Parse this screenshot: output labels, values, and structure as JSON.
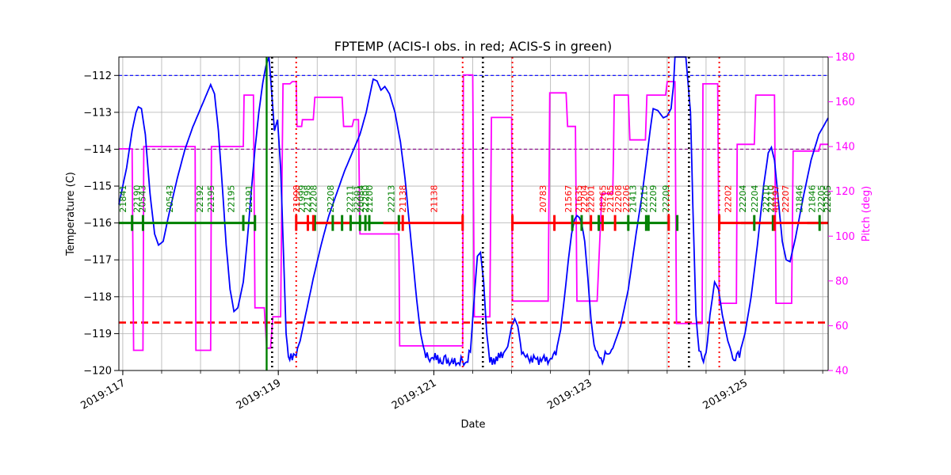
{
  "chart_data": {
    "type": "line",
    "title": "FPTEMP (ACIS-I obs. in red; ACIS-S in green)",
    "xlabel": "Date",
    "ylabel": "Temperature (C)",
    "y2label": "Pitch (deg)",
    "xlim": [
      116.95,
      126.07
    ],
    "ylim": [
      -120,
      -111.5
    ],
    "y2lim": [
      40,
      180
    ],
    "x_ticks": [
      117,
      119,
      121,
      123,
      125
    ],
    "x_tick_labels": [
      "2019:117",
      "2019:119",
      "2019:121",
      "2019:123",
      "2019:125"
    ],
    "y_ticks": [
      -120,
      -119,
      -118,
      -117,
      -116,
      -115,
      -114,
      -113,
      -112
    ],
    "y2_ticks": [
      40,
      60,
      80,
      100,
      120,
      140,
      160,
      180
    ],
    "grid": true,
    "colors": {
      "temperature": "#0000ff",
      "pitch": "#ff00ff",
      "acis_i": "#ff0000",
      "acis_s": "#008000",
      "limit_blue": "#0000ff",
      "limit_purple": "#800080",
      "limit_red": "#ff0000"
    },
    "reference_lines": [
      {
        "y": -112.0,
        "color": "#0000ff",
        "style": "dashed"
      },
      {
        "y": -114.0,
        "color": "#800080",
        "style": "dashed"
      },
      {
        "y": -118.7,
        "color": "#ff0000",
        "style": "dashed-thick"
      }
    ],
    "vertical_markers": [
      {
        "x": 118.92,
        "color": "#000000",
        "style": "dotted"
      },
      {
        "x": 121.63,
        "color": "#000000",
        "style": "dotted"
      },
      {
        "x": 124.28,
        "color": "#000000",
        "style": "dotted"
      },
      {
        "x": 119.23,
        "color": "#ff0000",
        "style": "dotted"
      },
      {
        "x": 121.37,
        "color": "#ff0000",
        "style": "dotted"
      },
      {
        "x": 122.01,
        "color": "#ff0000",
        "style": "dotted"
      },
      {
        "x": 124.02,
        "color": "#ff0000",
        "style": "dotted"
      },
      {
        "x": 124.67,
        "color": "#ff0000",
        "style": "dotted"
      },
      {
        "x": 118.85,
        "color": "#008000",
        "style": "solid"
      }
    ],
    "temperature_series": {
      "name": "FPTEMP",
      "points": [
        [
          116.95,
          -115.5
        ],
        [
          117.05,
          -114.5
        ],
        [
          117.12,
          -113.5
        ],
        [
          117.17,
          -113.0
        ],
        [
          117.2,
          -112.85
        ],
        [
          117.24,
          -112.9
        ],
        [
          117.29,
          -113.6
        ],
        [
          117.35,
          -115.2
        ],
        [
          117.41,
          -116.3
        ],
        [
          117.46,
          -116.6
        ],
        [
          117.52,
          -116.5
        ],
        [
          117.6,
          -115.7
        ],
        [
          117.7,
          -114.8
        ],
        [
          117.8,
          -114.0
        ],
        [
          117.9,
          -113.4
        ],
        [
          118.0,
          -112.9
        ],
        [
          118.08,
          -112.5
        ],
        [
          118.13,
          -112.25
        ],
        [
          118.18,
          -112.5
        ],
        [
          118.23,
          -113.5
        ],
        [
          118.28,
          -115.0
        ],
        [
          118.33,
          -116.6
        ],
        [
          118.38,
          -117.8
        ],
        [
          118.43,
          -118.4
        ],
        [
          118.48,
          -118.3
        ],
        [
          118.55,
          -117.6
        ],
        [
          118.6,
          -116.5
        ],
        [
          118.65,
          -115.2
        ],
        [
          118.7,
          -114.0
        ],
        [
          118.75,
          -113.0
        ],
        [
          118.8,
          -112.2
        ],
        [
          118.84,
          -111.75
        ],
        [
          118.88,
          -111.5
        ],
        [
          118.92,
          -112.6
        ],
        [
          118.95,
          -113.5
        ],
        [
          118.99,
          -113.2
        ],
        [
          119.03,
          -114.5
        ],
        [
          119.07,
          -117.0
        ],
        [
          119.1,
          -119.0
        ],
        [
          119.13,
          -119.6
        ],
        [
          119.18,
          -119.7
        ],
        [
          119.23,
          -119.5
        ],
        [
          119.28,
          -119.2
        ],
        [
          119.35,
          -118.5
        ],
        [
          119.45,
          -117.5
        ],
        [
          119.55,
          -116.6
        ],
        [
          119.65,
          -115.8
        ],
        [
          119.75,
          -115.2
        ],
        [
          119.85,
          -114.6
        ],
        [
          119.95,
          -114.1
        ],
        [
          120.05,
          -113.6
        ],
        [
          120.13,
          -113.0
        ],
        [
          120.18,
          -112.5
        ],
        [
          120.22,
          -112.1
        ],
        [
          120.27,
          -112.15
        ],
        [
          120.32,
          -112.4
        ],
        [
          120.37,
          -112.3
        ],
        [
          120.43,
          -112.5
        ],
        [
          120.5,
          -113.0
        ],
        [
          120.57,
          -113.8
        ],
        [
          120.63,
          -114.8
        ],
        [
          120.68,
          -115.9
        ],
        [
          120.73,
          -117.0
        ],
        [
          120.78,
          -118.1
        ],
        [
          120.83,
          -119.0
        ],
        [
          120.88,
          -119.5
        ],
        [
          120.93,
          -119.7
        ],
        [
          121.0,
          -119.65
        ],
        [
          121.08,
          -119.75
        ],
        [
          121.15,
          -119.7
        ],
        [
          121.25,
          -119.8
        ],
        [
          121.35,
          -119.75
        ],
        [
          121.42,
          -119.8
        ],
        [
          121.47,
          -119.5
        ],
        [
          121.52,
          -118.0
        ],
        [
          121.56,
          -116.9
        ],
        [
          121.6,
          -116.8
        ],
        [
          121.64,
          -117.6
        ],
        [
          121.68,
          -119.0
        ],
        [
          121.72,
          -119.7
        ],
        [
          121.8,
          -119.7
        ],
        [
          121.88,
          -119.6
        ],
        [
          121.95,
          -119.35
        ],
        [
          122.0,
          -118.8
        ],
        [
          122.04,
          -118.6
        ],
        [
          122.08,
          -118.8
        ],
        [
          122.13,
          -119.5
        ],
        [
          122.2,
          -119.65
        ],
        [
          122.3,
          -119.7
        ],
        [
          122.4,
          -119.7
        ],
        [
          122.5,
          -119.7
        ],
        [
          122.57,
          -119.5
        ],
        [
          122.63,
          -118.9
        ],
        [
          122.68,
          -118.0
        ],
        [
          122.73,
          -117.0
        ],
        [
          122.77,
          -116.3
        ],
        [
          122.81,
          -115.9
        ],
        [
          122.84,
          -115.8
        ],
        [
          122.87,
          -115.85
        ],
        [
          122.9,
          -116.0
        ],
        [
          122.94,
          -116.5
        ],
        [
          122.98,
          -117.5
        ],
        [
          123.02,
          -118.6
        ],
        [
          123.06,
          -119.3
        ],
        [
          123.1,
          -119.6
        ],
        [
          123.15,
          -119.7
        ],
        [
          123.22,
          -119.6
        ],
        [
          123.3,
          -119.4
        ],
        [
          123.4,
          -118.8
        ],
        [
          123.5,
          -117.8
        ],
        [
          123.6,
          -116.3
        ],
        [
          123.68,
          -115.2
        ],
        [
          123.74,
          -114.2
        ],
        [
          123.78,
          -113.5
        ],
        [
          123.82,
          -112.9
        ],
        [
          123.88,
          -112.95
        ],
        [
          123.95,
          -113.15
        ],
        [
          124.0,
          -113.1
        ],
        [
          124.05,
          -112.9
        ],
        [
          124.08,
          -112.3
        ],
        [
          124.1,
          -111.5
        ],
        [
          124.2,
          -111.5
        ],
        [
          124.24,
          -111.5
        ],
        [
          124.3,
          -113.0
        ],
        [
          124.33,
          -115.5
        ],
        [
          124.37,
          -118.5
        ],
        [
          124.41,
          -119.5
        ],
        [
          124.45,
          -119.7
        ],
        [
          124.5,
          -119.6
        ],
        [
          124.55,
          -118.5
        ],
        [
          124.61,
          -117.6
        ],
        [
          124.66,
          -117.8
        ],
        [
          124.71,
          -118.5
        ],
        [
          124.78,
          -119.2
        ],
        [
          124.86,
          -119.7
        ],
        [
          124.93,
          -119.55
        ],
        [
          125.0,
          -119.0
        ],
        [
          125.08,
          -118.0
        ],
        [
          125.16,
          -116.6
        ],
        [
          125.24,
          -115.0
        ],
        [
          125.3,
          -114.1
        ],
        [
          125.34,
          -113.95
        ],
        [
          125.38,
          -114.3
        ],
        [
          125.43,
          -115.4
        ],
        [
          125.48,
          -116.5
        ],
        [
          125.53,
          -117.0
        ],
        [
          125.58,
          -117.05
        ],
        [
          125.65,
          -116.4
        ],
        [
          125.75,
          -115.3
        ],
        [
          125.85,
          -114.3
        ],
        [
          125.95,
          -113.6
        ],
        [
          126.07,
          -113.15
        ]
      ]
    },
    "pitch_series": {
      "name": "Pitch",
      "points": [
        [
          116.95,
          139
        ],
        [
          117.1,
          139
        ],
        [
          117.12,
          139
        ],
        [
          117.14,
          49
        ],
        [
          117.26,
          49
        ],
        [
          117.27,
          140
        ],
        [
          117.93,
          140
        ],
        [
          117.94,
          49
        ],
        [
          118.13,
          49
        ],
        [
          118.14,
          140
        ],
        [
          118.55,
          140
        ],
        [
          118.56,
          163
        ],
        [
          118.68,
          163
        ],
        [
          118.7,
          68
        ],
        [
          118.82,
          68
        ],
        [
          118.85,
          50
        ],
        [
          118.9,
          50
        ],
        [
          118.93,
          64
        ],
        [
          119.03,
          64
        ],
        [
          119.06,
          168
        ],
        [
          119.15,
          168
        ],
        [
          119.18,
          169
        ],
        [
          119.23,
          169
        ],
        [
          119.24,
          149
        ],
        [
          119.3,
          149
        ],
        [
          119.31,
          152
        ],
        [
          119.45,
          152
        ],
        [
          119.47,
          162
        ],
        [
          119.82,
          162
        ],
        [
          119.84,
          149
        ],
        [
          119.95,
          149
        ],
        [
          119.97,
          152
        ],
        [
          120.03,
          152
        ],
        [
          120.05,
          101
        ],
        [
          120.55,
          101
        ],
        [
          120.56,
          51
        ],
        [
          121.37,
          51
        ],
        [
          121.38,
          172
        ],
        [
          121.5,
          172
        ],
        [
          121.52,
          64
        ],
        [
          121.72,
          64
        ],
        [
          121.74,
          153
        ],
        [
          121.88,
          153
        ],
        [
          121.9,
          153
        ],
        [
          122.0,
          153
        ],
        [
          122.01,
          71
        ],
        [
          122.47,
          71
        ],
        [
          122.49,
          164
        ],
        [
          122.7,
          164
        ],
        [
          122.72,
          149
        ],
        [
          122.82,
          149
        ],
        [
          122.84,
          71
        ],
        [
          123.1,
          71
        ],
        [
          123.16,
          119
        ],
        [
          123.3,
          119
        ],
        [
          123.31,
          136
        ],
        [
          123.32,
          163
        ],
        [
          123.5,
          163
        ],
        [
          123.52,
          143
        ],
        [
          123.72,
          143
        ],
        [
          123.74,
          163
        ],
        [
          123.98,
          163
        ],
        [
          124.0,
          169
        ],
        [
          124.1,
          169
        ],
        [
          124.12,
          61
        ],
        [
          124.45,
          61
        ],
        [
          124.46,
          168
        ],
        [
          124.65,
          168
        ],
        [
          124.67,
          70
        ],
        [
          124.89,
          70
        ],
        [
          124.9,
          141
        ],
        [
          125.12,
          141
        ],
        [
          125.14,
          163
        ],
        [
          125.38,
          163
        ],
        [
          125.4,
          70
        ],
        [
          125.6,
          70
        ],
        [
          125.62,
          138
        ],
        [
          125.95,
          138
        ],
        [
          125.97,
          141
        ],
        [
          126.07,
          141
        ]
      ]
    },
    "acis_i_segments": [
      [
        119.23,
        119.93
      ],
      [
        120.35,
        121.37
      ],
      [
        122.01,
        122.6
      ],
      [
        122.6,
        123.02
      ],
      [
        124.67,
        125.4
      ],
      [
        125.4,
        126.07
      ]
    ],
    "acis_s_segments": [
      [
        116.95,
        118.7
      ],
      [
        119.37,
        120.55
      ],
      [
        122.8,
        124.02
      ],
      [
        124.95,
        125.4
      ],
      [
        125.8,
        126.07
      ]
    ],
    "acis_i_ticks": [
      119.23,
      119.38,
      119.45,
      120.6,
      121.37,
      122.01,
      122.55,
      123.02,
      123.17,
      123.33,
      124.02,
      124.67,
      125.38
    ],
    "acis_s_ticks": [
      117.12,
      117.26,
      118.55,
      118.7,
      119.47,
      119.7,
      119.82,
      119.93,
      120.05,
      120.12,
      120.17,
      120.55,
      122.78,
      122.9,
      123.12,
      123.5,
      123.73,
      123.76,
      124.13,
      125.12,
      125.36,
      125.96
    ],
    "acis_i_labels": [
      {
        "x": 119.23,
        "text": "21998"
      },
      {
        "x": 120.6,
        "text": "21138"
      },
      {
        "x": 121.0,
        "text": "21138"
      },
      {
        "x": 122.4,
        "text": "20783"
      },
      {
        "x": 122.73,
        "text": "21567"
      },
      {
        "x": 122.86,
        "text": "21635"
      },
      {
        "x": 122.93,
        "text": "22204"
      },
      {
        "x": 123.02,
        "text": "22201"
      },
      {
        "x": 123.17,
        "text": "48265"
      },
      {
        "x": 123.27,
        "text": "22185"
      },
      {
        "x": 123.37,
        "text": "22208"
      },
      {
        "x": 123.47,
        "text": "22206"
      },
      {
        "x": 124.78,
        "text": "22202"
      },
      {
        "x": 125.39,
        "text": "48197"
      },
      {
        "x": 125.52,
        "text": "22207"
      }
    ],
    "acis_s_labels": [
      {
        "x": 117.0,
        "text": "21841"
      },
      {
        "x": 117.18,
        "text": "22190"
      },
      {
        "x": 117.25,
        "text": "20543"
      },
      {
        "x": 117.6,
        "text": "20543"
      },
      {
        "x": 117.99,
        "text": "22192"
      },
      {
        "x": 118.13,
        "text": "22195"
      },
      {
        "x": 118.39,
        "text": "22195"
      },
      {
        "x": 118.62,
        "text": "22191"
      },
      {
        "x": 119.3,
        "text": "21999"
      },
      {
        "x": 119.37,
        "text": "22198"
      },
      {
        "x": 119.45,
        "text": "22208"
      },
      {
        "x": 119.67,
        "text": "22208"
      },
      {
        "x": 119.92,
        "text": "22211"
      },
      {
        "x": 120.01,
        "text": "22201"
      },
      {
        "x": 120.06,
        "text": "20084"
      },
      {
        "x": 120.12,
        "text": "22200"
      },
      {
        "x": 120.17,
        "text": "21200"
      },
      {
        "x": 120.45,
        "text": "22213"
      },
      {
        "x": 123.56,
        "text": "21413"
      },
      {
        "x": 123.7,
        "text": "22215"
      },
      {
        "x": 123.82,
        "text": "22209"
      },
      {
        "x": 123.98,
        "text": "22209"
      },
      {
        "x": 124.97,
        "text": "22204"
      },
      {
        "x": 125.12,
        "text": "22204"
      },
      {
        "x": 125.27,
        "text": "22210"
      },
      {
        "x": 125.33,
        "text": "22210"
      },
      {
        "x": 125.7,
        "text": "21846"
      },
      {
        "x": 125.86,
        "text": "21846"
      },
      {
        "x": 125.98,
        "text": "22205"
      },
      {
        "x": 126.06,
        "text": "22205"
      }
    ]
  }
}
